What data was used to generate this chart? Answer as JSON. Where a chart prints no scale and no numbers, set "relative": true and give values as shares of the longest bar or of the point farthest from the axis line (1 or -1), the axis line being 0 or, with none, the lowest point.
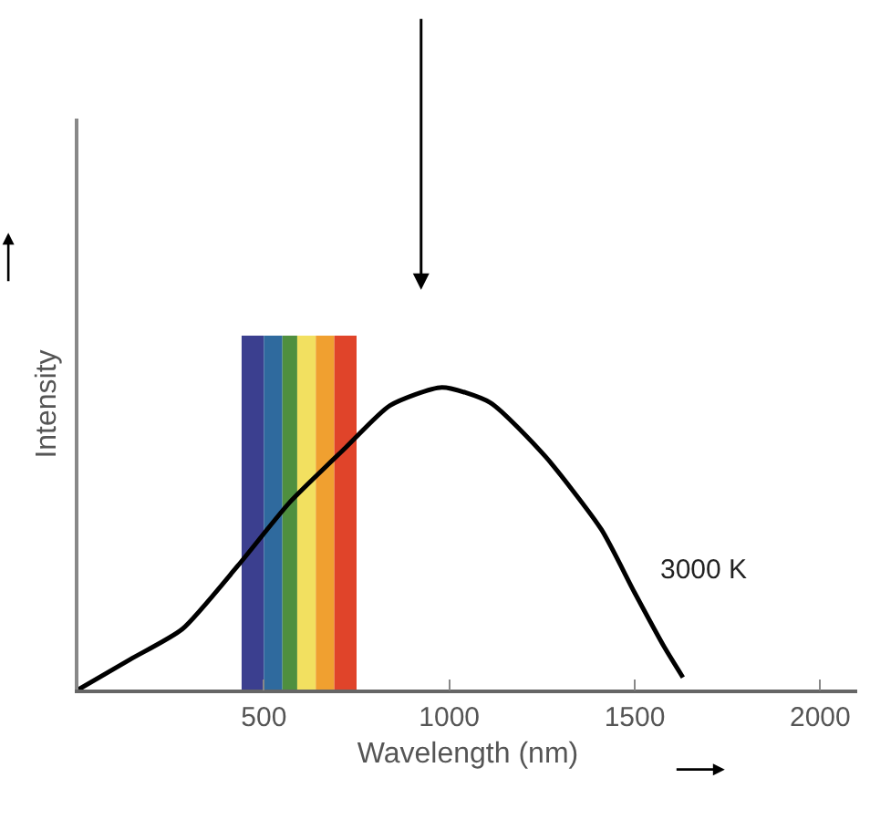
{
  "chart_data": {
    "type": "line",
    "relative": true,
    "xlabel": "Wavelength (nm)",
    "ylabel": "Intensity",
    "x": [
      0,
      140,
      280,
      430,
      570,
      720,
      840,
      980,
      1110,
      1260,
      1410,
      1500,
      1580,
      1630
    ],
    "series": [
      {
        "name": "3000 K",
        "color": "#000000",
        "values": [
          0,
          0.1,
          0.2,
          0.41,
          0.62,
          0.8,
          0.94,
          1,
          0.95,
          0.77,
          0.53,
          0.32,
          0.14,
          0.04
        ]
      }
    ],
    "xlim": [
      0,
      2100
    ],
    "xticks": [
      500,
      1000,
      1500,
      2000
    ],
    "bands": [
      {
        "axis": "x",
        "from": 440,
        "to": 500,
        "color": "#3b3f8f"
      },
      {
        "axis": "x",
        "from": 500,
        "to": 550,
        "color": "#2f6a9e"
      },
      {
        "axis": "x",
        "from": 550,
        "to": 590,
        "color": "#4f8f3f"
      },
      {
        "axis": "x",
        "from": 590,
        "to": 640,
        "color": "#f2e060"
      },
      {
        "axis": "x",
        "from": 640,
        "to": 690,
        "color": "#f0a030"
      },
      {
        "axis": "x",
        "from": 690,
        "to": 750,
        "color": "#e0442a"
      }
    ],
    "grid": false,
    "legend": false,
    "marker": "none",
    "line_style": "solid"
  }
}
